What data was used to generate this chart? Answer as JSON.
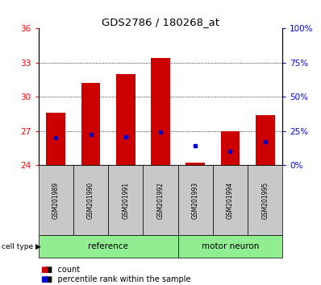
{
  "title": "GDS2786 / 180268_at",
  "samples": [
    "GSM201989",
    "GSM201990",
    "GSM201991",
    "GSM201992",
    "GSM201993",
    "GSM201994",
    "GSM201995"
  ],
  "count_values": [
    28.6,
    31.2,
    32.0,
    33.4,
    24.2,
    27.0,
    28.4
  ],
  "percentile_values": [
    26.4,
    26.7,
    26.5,
    26.9,
    25.7,
    25.2,
    26.1
  ],
  "bar_bottom": 24,
  "ylim_left": [
    24,
    36
  ],
  "yticks_left": [
    24,
    27,
    30,
    33,
    36
  ],
  "ylim_right": [
    0,
    100
  ],
  "yticks_right": [
    0,
    25,
    50,
    75,
    100
  ],
  "ytick_labels_right": [
    "0%",
    "25%",
    "50%",
    "75%",
    "100%"
  ],
  "bar_color": "#CC0000",
  "marker_color": "#0000CC",
  "bar_width": 0.55,
  "ref_count": 4,
  "motor_count": 3,
  "ref_label": "reference",
  "motor_label": "motor neuron",
  "group_color": "#90EE90",
  "xtick_bg_color": "#C8C8C8",
  "legend_count_label": "count",
  "legend_pct_label": "percentile rank within the sample",
  "cell_type_label": "cell type"
}
